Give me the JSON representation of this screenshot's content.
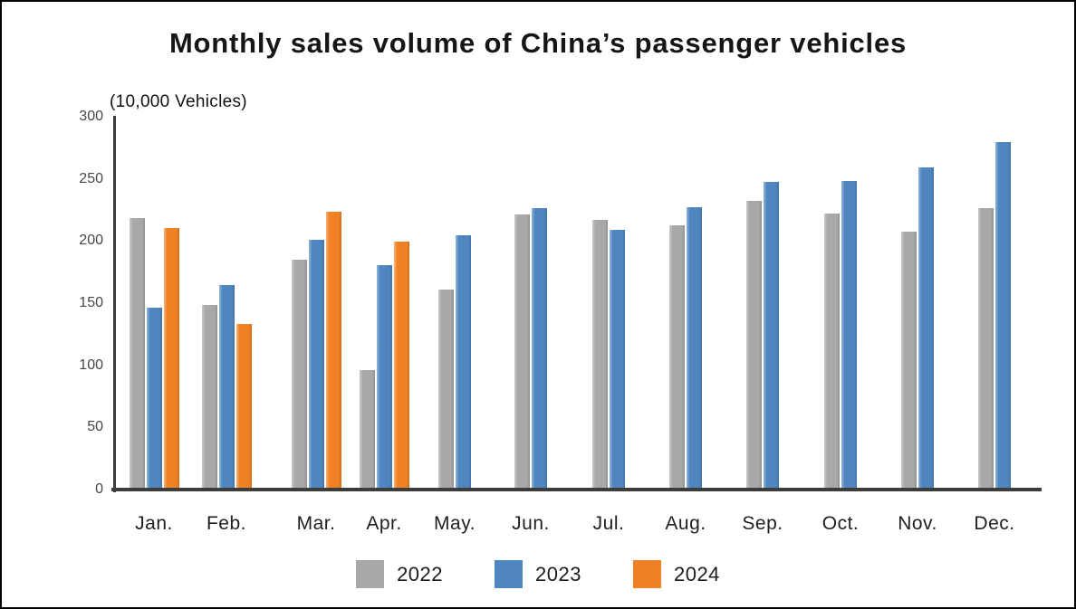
{
  "chart_data": {
    "type": "bar",
    "title": "Monthly sales volume of China’s passenger vehicles",
    "unit_label": "(10,000 Vehicles)",
    "categories": [
      "Jan.",
      "Feb.",
      "Mar.",
      "Apr.",
      "May.",
      "Jun.",
      "Jul.",
      "Aug.",
      "Sep.",
      "Oct.",
      "Nov.",
      "Dec."
    ],
    "series": [
      {
        "name": "2022",
        "color": "#a8a8a8",
        "values": [
          219,
          149,
          186,
          97,
          162,
          222,
          218,
          213,
          233,
          223,
          208,
          227
        ]
      },
      {
        "name": "2023",
        "color": "#4f86c0",
        "values": [
          147,
          165,
          202,
          181,
          205,
          227,
          210,
          228,
          248,
          249,
          260,
          280
        ]
      },
      {
        "name": "2024",
        "color": "#f08124",
        "values": [
          211,
          134,
          224,
          200
        ]
      }
    ],
    "ylim": [
      0,
      300
    ],
    "yticks": [
      0,
      50,
      100,
      150,
      200,
      250,
      300
    ],
    "grid": false,
    "legend_position": "bottom",
    "axis_color": "#3c3c3c"
  }
}
